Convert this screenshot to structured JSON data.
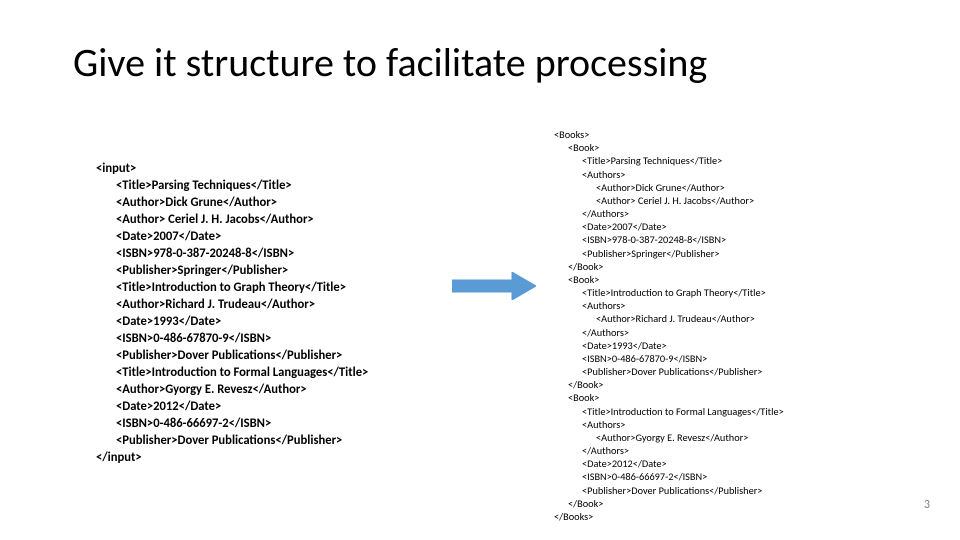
{
  "slide": {
    "title": "Give it structure to facilitate processing",
    "page_number": "3"
  },
  "arrow": {
    "stroke_color": "#5b9bd5",
    "fill_color": "#5b9bd5",
    "stroke_width": 1
  },
  "left": {
    "lines": [
      {
        "indent": 0,
        "text": "<input>"
      },
      {
        "indent": 1,
        "text": "<Title>Parsing Techniques</Title>"
      },
      {
        "indent": 1,
        "text": "<Author>Dick Grune</Author>"
      },
      {
        "indent": 1,
        "text": "<Author> Ceriel J. H. Jacobs</Author>"
      },
      {
        "indent": 1,
        "text": "<Date>2007</Date>"
      },
      {
        "indent": 1,
        "text": "<ISBN>978-0-387-20248-8</ISBN>"
      },
      {
        "indent": 1,
        "text": "<Publisher>Springer</Publisher>"
      },
      {
        "indent": 1,
        "text": "<Title>Introduction to Graph Theory</Title>"
      },
      {
        "indent": 1,
        "text": "<Author>Richard J. Trudeau</Author>"
      },
      {
        "indent": 1,
        "text": "<Date>1993</Date>"
      },
      {
        "indent": 1,
        "text": "<ISBN>0-486-67870-9</ISBN>"
      },
      {
        "indent": 1,
        "text": "<Publisher>Dover Publications</Publisher>"
      },
      {
        "indent": 1,
        "text": "<Title>Introduction to Formal Languages</Title>"
      },
      {
        "indent": 1,
        "text": "<Author>Gyorgy E. Revesz</Author>"
      },
      {
        "indent": 1,
        "text": "<Date>2012</Date>"
      },
      {
        "indent": 1,
        "text": "<ISBN>0-486-66697-2</ISBN>"
      },
      {
        "indent": 1,
        "text": "<Publisher>Dover Publications</Publisher>"
      },
      {
        "indent": 0,
        "text": "</input>"
      }
    ]
  },
  "right": {
    "lines": [
      {
        "indent": 0,
        "text": "<Books>"
      },
      {
        "indent": 1,
        "text": "<Book>"
      },
      {
        "indent": 2,
        "text": "<Title>Parsing Techniques</Title>"
      },
      {
        "indent": 2,
        "text": "<Authors>"
      },
      {
        "indent": 3,
        "text": "<Author>Dick Grune</Author>"
      },
      {
        "indent": 3,
        "text": "<Author> Ceriel J. H. Jacobs</Author>"
      },
      {
        "indent": 2,
        "text": "</Authors>"
      },
      {
        "indent": 2,
        "text": "<Date>2007</Date>"
      },
      {
        "indent": 2,
        "text": "<ISBN>978-0-387-20248-8</ISBN>"
      },
      {
        "indent": 2,
        "text": "<Publisher>Springer</Publisher>"
      },
      {
        "indent": 1,
        "text": "</Book>"
      },
      {
        "indent": 1,
        "text": "<Book>"
      },
      {
        "indent": 2,
        "text": "<Title>Introduction to Graph Theory</Title>"
      },
      {
        "indent": 2,
        "text": "<Authors>"
      },
      {
        "indent": 3,
        "text": "<Author>Richard J. Trudeau</Author>"
      },
      {
        "indent": 2,
        "text": "</Authors>"
      },
      {
        "indent": 2,
        "text": "<Date>1993</Date>"
      },
      {
        "indent": 2,
        "text": "<ISBN>0-486-67870-9</ISBN>"
      },
      {
        "indent": 2,
        "text": "<Publisher>Dover Publications</Publisher>"
      },
      {
        "indent": 1,
        "text": "</Book>"
      },
      {
        "indent": 1,
        "text": "<Book>"
      },
      {
        "indent": 2,
        "text": "<Title>Introduction to Formal Languages</Title>"
      },
      {
        "indent": 2,
        "text": "<Authors>"
      },
      {
        "indent": 3,
        "text": "<Author>Gyorgy E. Revesz</Author>"
      },
      {
        "indent": 2,
        "text": "</Authors>"
      },
      {
        "indent": 2,
        "text": "<Date>2012</Date>"
      },
      {
        "indent": 2,
        "text": "<ISBN>0-486-66697-2</ISBN>"
      },
      {
        "indent": 2,
        "text": "<Publisher>Dover Publications</Publisher>"
      },
      {
        "indent": 1,
        "text": "</Book>"
      },
      {
        "indent": 0,
        "text": "</Books>"
      }
    ]
  }
}
